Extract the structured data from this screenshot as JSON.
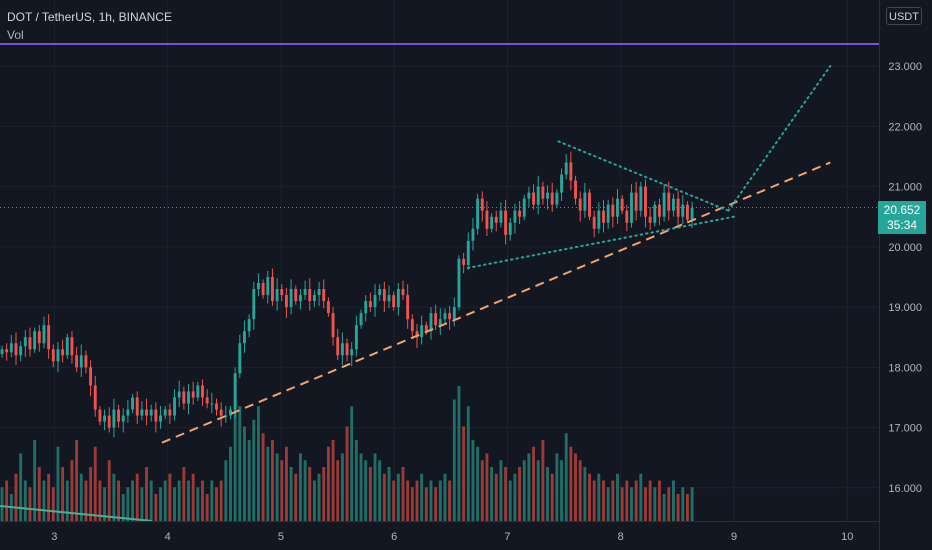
{
  "header": {
    "symbol_line": "DOT / TetherUS, 1h, BINANCE",
    "indicator": "Vol",
    "currency": "USDT"
  },
  "price_badge": {
    "price": "20.652",
    "countdown": "35:34"
  },
  "colors": {
    "background": "#131722",
    "up": "#26a69a",
    "down": "#ef5350",
    "volume_up": "#1f6f67",
    "volume_down": "#9b3a38",
    "purple_line": "#7b4fd6",
    "support_dash": "#f5a26a",
    "pattern_dots": "#26a69a"
  },
  "chart_data": {
    "type": "candlestick",
    "x_ticks": [
      "3",
      "4",
      "5",
      "6",
      "7",
      "8",
      "9",
      "10"
    ],
    "y_ticks": [
      "16.000",
      "17.000",
      "18.000",
      "19.000",
      "20.000",
      "21.000",
      "22.000",
      "23.000"
    ],
    "ylim": [
      15.45,
      23.3
    ],
    "xlim": [
      2.52,
      10.28
    ],
    "last_price": 20.652,
    "horizontal_line_price": 23.45,
    "candle_close": [
      18.3,
      18.25,
      18.4,
      18.2,
      18.35,
      18.5,
      18.3,
      18.6,
      18.4,
      18.7,
      18.3,
      18.1,
      18.3,
      18.2,
      18.5,
      18.2,
      18.0,
      18.2,
      18.0,
      17.7,
      17.3,
      17.1,
      17.2,
      17.0,
      17.3,
      17.1,
      17.2,
      17.3,
      17.5,
      17.2,
      17.3,
      17.2,
      17.3,
      17.1,
      17.2,
      17.3,
      17.2,
      17.5,
      17.6,
      17.4,
      17.6,
      17.5,
      17.7,
      17.5,
      17.4,
      17.4,
      17.3,
      17.2,
      17.2,
      17.3,
      17.9,
      18.4,
      18.6,
      18.8,
      19.3,
      19.4,
      19.2,
      19.5,
      19.1,
      19.3,
      19.2,
      19.0,
      19.3,
      19.1,
      19.2,
      19.3,
      19.1,
      19.2,
      19.3,
      19.1,
      18.9,
      18.5,
      18.2,
      18.4,
      18.2,
      18.3,
      18.7,
      18.9,
      19.1,
      19.0,
      19.2,
      19.3,
      19.1,
      19.2,
      19.0,
      19.3,
      19.2,
      18.8,
      18.6,
      18.5,
      18.7,
      18.6,
      18.9,
      18.7,
      18.8,
      18.9,
      18.8,
      19.0,
      19.8,
      19.7,
      20.1,
      20.3,
      20.8,
      20.6,
      20.3,
      20.5,
      20.4,
      20.6,
      20.2,
      20.4,
      20.6,
      20.5,
      20.8,
      20.9,
      20.7,
      21.0,
      20.8,
      20.9,
      20.7,
      20.9,
      21.2,
      21.4,
      21.1,
      20.8,
      20.6,
      20.9,
      20.5,
      20.3,
      20.6,
      20.4,
      20.7,
      20.5,
      20.8,
      20.6,
      20.4,
      20.9,
      20.6,
      21.0,
      20.5,
      20.4,
      20.7,
      20.5,
      20.9,
      20.6,
      20.8,
      20.5,
      20.7,
      20.45,
      20.65
    ],
    "candle_volume_rel": [
      0.25,
      0.3,
      0.2,
      0.35,
      0.5,
      0.3,
      0.25,
      0.6,
      0.4,
      0.3,
      0.35,
      0.25,
      0.55,
      0.4,
      0.3,
      0.45,
      0.6,
      0.35,
      0.3,
      0.4,
      0.55,
      0.3,
      0.25,
      0.45,
      0.35,
      0.3,
      0.2,
      0.25,
      0.3,
      0.35,
      0.25,
      0.4,
      0.3,
      0.2,
      0.25,
      0.3,
      0.35,
      0.25,
      0.3,
      0.4,
      0.3,
      0.35,
      0.25,
      0.3,
      0.2,
      0.3,
      0.25,
      0.3,
      0.45,
      0.55,
      0.9,
      0.85,
      0.7,
      0.6,
      0.75,
      0.85,
      0.65,
      0.55,
      0.6,
      0.5,
      0.45,
      0.55,
      0.4,
      0.35,
      0.5,
      0.45,
      0.4,
      0.3,
      0.35,
      0.4,
      0.55,
      0.6,
      0.45,
      0.5,
      0.7,
      0.85,
      0.6,
      0.5,
      0.45,
      0.4,
      0.5,
      0.45,
      0.35,
      0.4,
      0.3,
      0.35,
      0.4,
      0.3,
      0.25,
      0.3,
      0.35,
      0.25,
      0.3,
      0.25,
      0.3,
      0.35,
      0.3,
      0.9,
      1.0,
      0.7,
      0.85,
      0.6,
      0.55,
      0.45,
      0.5,
      0.4,
      0.35,
      0.45,
      0.4,
      0.3,
      0.35,
      0.4,
      0.45,
      0.5,
      0.55,
      0.45,
      0.6,
      0.4,
      0.35,
      0.5,
      0.45,
      0.65,
      0.55,
      0.5,
      0.45,
      0.4,
      0.35,
      0.3,
      0.35,
      0.3,
      0.25,
      0.3,
      0.35,
      0.25,
      0.3,
      0.25,
      0.3,
      0.35,
      0.25,
      0.3,
      0.25,
      0.3,
      0.2,
      0.25,
      0.3,
      0.2,
      0.25,
      0.2,
      0.25,
      0.15
    ],
    "support_line": {
      "from": [
        3.95,
        16.75
      ],
      "to": [
        9.85,
        21.4
      ]
    },
    "triangle_upper": {
      "from": [
        7.45,
        21.75
      ],
      "to": [
        8.95,
        20.6
      ]
    },
    "triangle_lower": {
      "from": [
        6.65,
        19.65
      ],
      "to": [
        9.0,
        20.5
      ]
    },
    "projection": {
      "from": [
        8.95,
        20.6
      ],
      "to": [
        9.85,
        23.0
      ]
    }
  }
}
